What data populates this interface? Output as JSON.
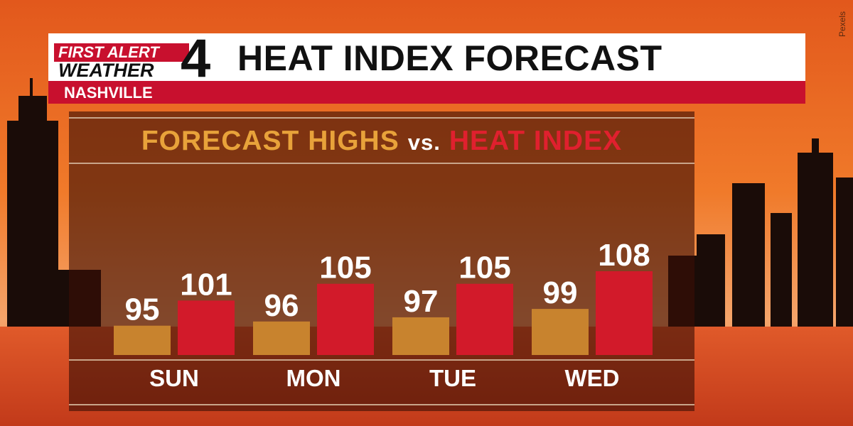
{
  "credit": "Pexels",
  "header": {
    "logo_line1": "FIRST ALERT",
    "logo_line2": "WEATHER",
    "logo_number": "4",
    "title": "HEAT INDEX FORECAST",
    "location": "NASHVILLE"
  },
  "subtitle": {
    "part1": "FORECAST HIGHS",
    "part2": "vs.",
    "part3": "HEAT INDEX"
  },
  "colors": {
    "highs": "#c8832e",
    "heat_index": "#d21a2a",
    "accent_red": "#c8102e"
  },
  "chart_data": {
    "type": "bar",
    "categories": [
      "SUN",
      "MON",
      "TUE",
      "WED"
    ],
    "series": [
      {
        "name": "FORECAST HIGHS",
        "values": [
          95,
          96,
          97,
          99
        ]
      },
      {
        "name": "HEAT INDEX",
        "values": [
          101,
          105,
          105,
          108
        ]
      }
    ],
    "title": "",
    "xlabel": "",
    "ylabel": "",
    "grid": false,
    "legend": "top"
  }
}
